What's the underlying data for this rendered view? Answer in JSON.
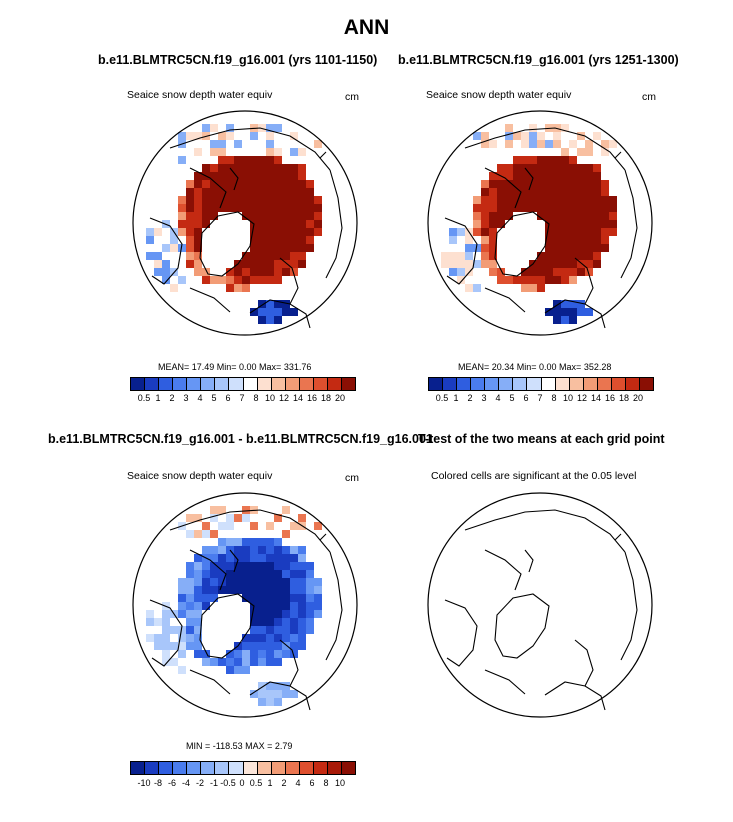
{
  "figure": {
    "title": "ANN"
  },
  "panels": [
    {
      "case_title": "b.e11.BLMTRC5CN.f19_g16.001 (yrs 1101-1150)",
      "var_label": "Seaice snow depth water equiv",
      "units": "cm",
      "stats": "MEAN=  17.49  Min=   0.00  Max= 331.76",
      "colorbar": "levels"
    },
    {
      "case_title": "b.e11.BLMTRC5CN.f19_g16.001 (yrs 1251-1300)",
      "var_label": "Seaice snow depth water equiv",
      "units": "cm",
      "stats": "MEAN=  20.34  Min=   0.00  Max= 352.28",
      "colorbar": "levels"
    },
    {
      "case_title": "b.e11.BLMTRC5CN.f19_g16.001 - b.e11.BLMTRC5CN.f19_g16.001",
      "var_label": "Seaice snow depth water equiv",
      "units": "cm",
      "stats": "MIN = -118.53 MAX =   2.79",
      "colorbar": "diff"
    },
    {
      "case_title": "T-test of the two means at each grid point",
      "var_label": "Colored cells are significant at the 0.05 level"
    }
  ],
  "chart_data": [
    {
      "type": "heatmap",
      "projection": "north-polar-stereographic",
      "title": "b.e11.BLMTRC5CN.f19_g16.001 (yrs 1101-1150)",
      "variable": "Seaice snow depth water equiv",
      "units": "cm",
      "mean": 17.49,
      "min": 0.0,
      "max": 331.76,
      "colorbar_levels": [
        0.5,
        1,
        2,
        3,
        4,
        5,
        6,
        7,
        8,
        10,
        12,
        14,
        16,
        18,
        20
      ]
    },
    {
      "type": "heatmap",
      "projection": "north-polar-stereographic",
      "title": "b.e11.BLMTRC5CN.f19_g16.001 (yrs 1251-1300)",
      "variable": "Seaice snow depth water equiv",
      "units": "cm",
      "mean": 20.34,
      "min": 0.0,
      "max": 352.28,
      "colorbar_levels": [
        0.5,
        1,
        2,
        3,
        4,
        5,
        6,
        7,
        8,
        10,
        12,
        14,
        16,
        18,
        20
      ]
    },
    {
      "type": "heatmap",
      "projection": "north-polar-stereographic",
      "title": "b.e11.BLMTRC5CN.f19_g16.001 - b.e11.BLMTRC5CN.f19_g16.001",
      "variable": "Seaice snow depth water equiv",
      "units": "cm",
      "min": -118.53,
      "max": 2.79,
      "colorbar_levels": [
        -10,
        -8,
        -6,
        -4,
        -2,
        -1,
        -0.5,
        0,
        0.5,
        1,
        2,
        4,
        6,
        8,
        10
      ]
    },
    {
      "type": "heatmap",
      "projection": "north-polar-stereographic",
      "title": "T-test of the two means at each grid point",
      "note": "Colored cells are significant at the 0.05 level",
      "significant_cells": 0
    }
  ],
  "colorbars": {
    "levels": {
      "labels": [
        "0.5",
        "1",
        "2",
        "3",
        "4",
        "5",
        "6",
        "7",
        "8",
        "10",
        "12",
        "14",
        "16",
        "18",
        "20"
      ],
      "colors": [
        "#08208e",
        "#1a3cc0",
        "#2f5ee0",
        "#4a7cee",
        "#6696f4",
        "#86aef7",
        "#a8c6fa",
        "#cfe0fc",
        "#ffffff",
        "#fde0d0",
        "#f8bfa0",
        "#f29c76",
        "#ea7550",
        "#de4f2e",
        "#c42a12",
        "#8a0f04"
      ]
    },
    "diff": {
      "labels": [
        "-10",
        "-8",
        "-6",
        "-4",
        "-2",
        "-1",
        "-0.5",
        "0",
        "0.5",
        "1",
        "2",
        "4",
        "6",
        "8",
        "10"
      ],
      "colors": [
        "#08208e",
        "#1a3cc0",
        "#2f5ee0",
        "#4a7cee",
        "#6696f4",
        "#86aef7",
        "#a8c6fa",
        "#cfe0fc",
        "#fbe6da",
        "#f8bfa0",
        "#f29c76",
        "#ea7550",
        "#de4f2e",
        "#c42a12",
        "#a81a08",
        "#8a0f04"
      ]
    }
  }
}
